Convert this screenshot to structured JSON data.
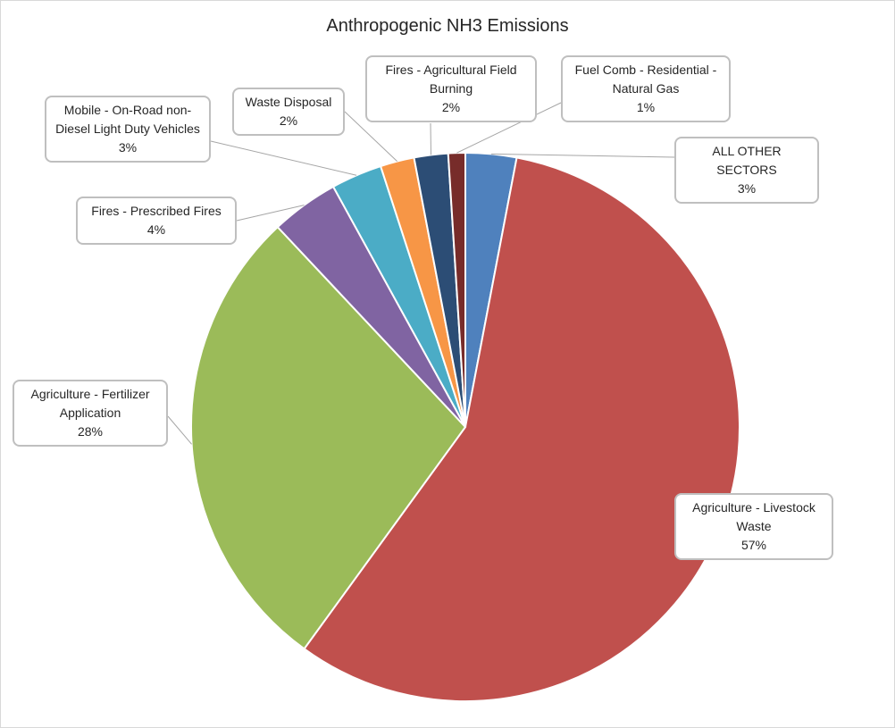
{
  "chart_data": {
    "type": "pie",
    "title": "Anthropogenic NH3 Emissions",
    "categories": [
      "ALL OTHER SECTORS",
      "Agriculture - Livestock Waste",
      "Agriculture - Fertilizer Application",
      "Fires - Prescribed Fires",
      "Mobile - On-Road non-Diesel Light Duty Vehicles",
      "Waste Disposal",
      "Fires - Agricultural Field Burning",
      "Fuel Comb - Residential - Natural Gas"
    ],
    "values": [
      3,
      57,
      28,
      4,
      3,
      2,
      2,
      1
    ],
    "value_labels": [
      "3%",
      "57%",
      "28%",
      "4%",
      "3%",
      "2%",
      "2%",
      "1%"
    ],
    "colors": [
      "#4f81bd",
      "#c0504d",
      "#9bbb59",
      "#8064a2",
      "#4bacc6",
      "#f79646",
      "#2c4d75",
      "#772c2a"
    ]
  }
}
